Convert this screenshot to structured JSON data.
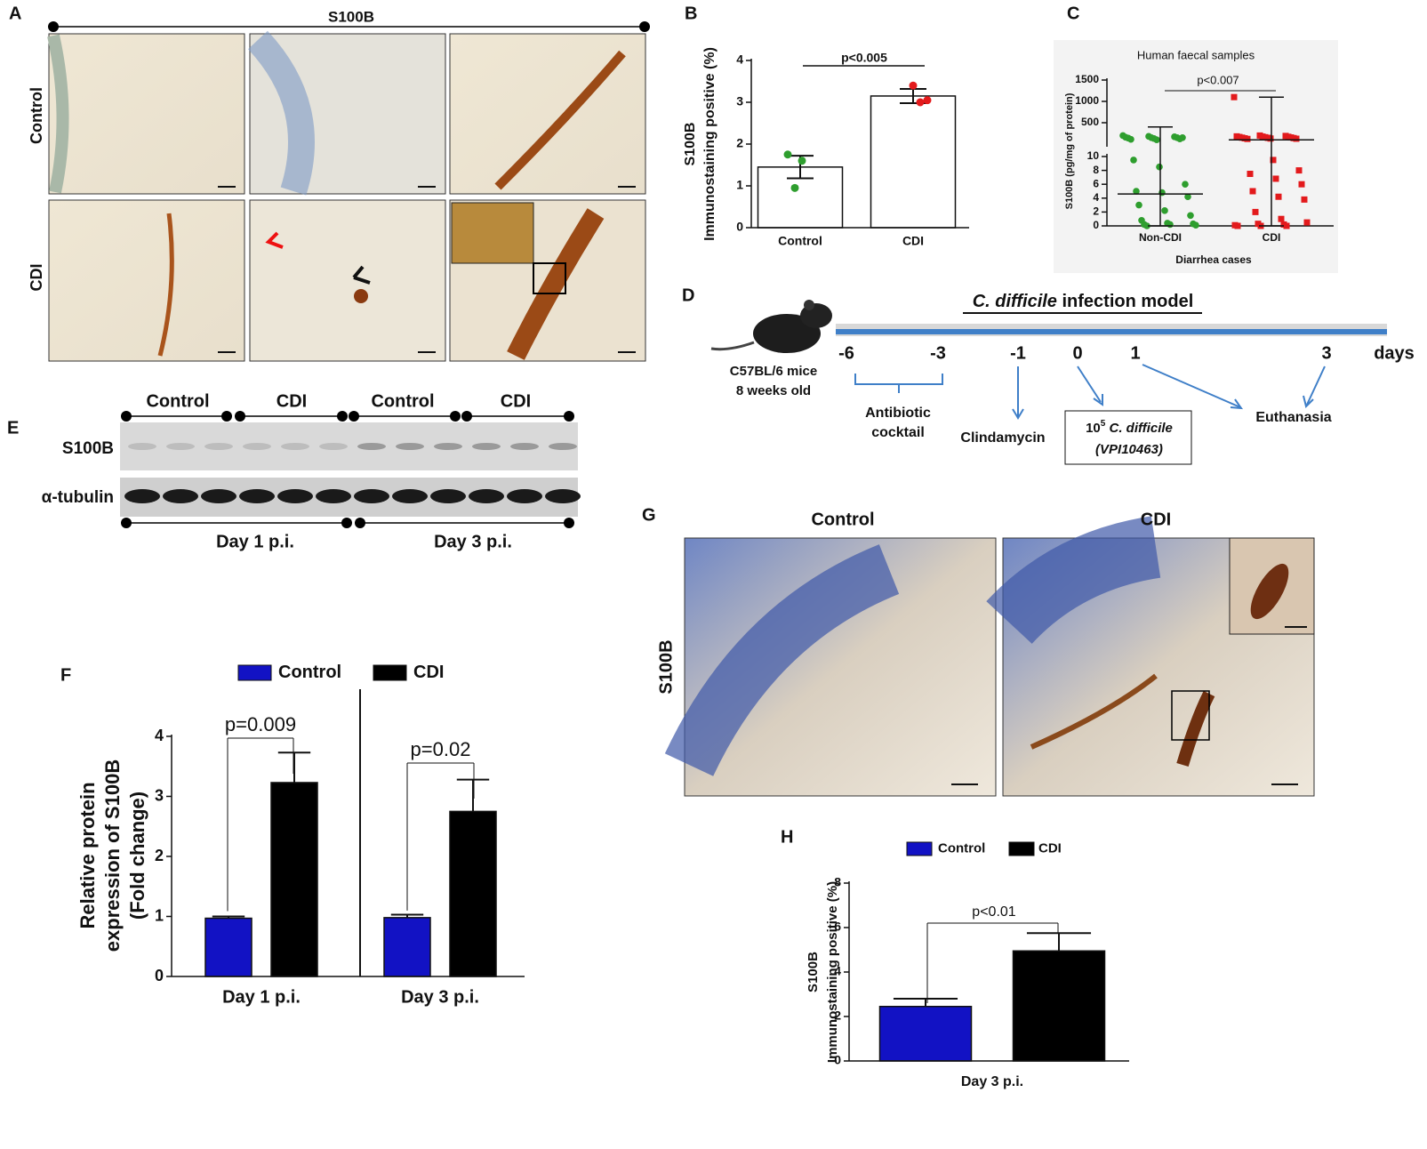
{
  "chart_data": [
    {
      "panel": "B",
      "type": "bar",
      "categories": [
        "Control",
        "CDI"
      ],
      "values": [
        1.45,
        3.15
      ],
      "errors": [
        0.27,
        0.17
      ],
      "points": [
        [
          1.75,
          1.6,
          0.95
        ],
        [
          3.4,
          3.05,
          3.0
        ]
      ],
      "point_colors": [
        "#2e9e2e",
        "#e31a1c"
      ],
      "color": "#ffffff",
      "ylabel": [
        "S100B",
        "Immunostaining positive (%)"
      ],
      "ylim": [
        0,
        4
      ],
      "yticks": [
        0,
        1,
        2,
        3,
        4
      ],
      "annotation": "p<0.005"
    },
    {
      "panel": "C",
      "type": "scatter",
      "title": "Human faecal samples",
      "categories": [
        "Non-CDI",
        "CDI"
      ],
      "points": [
        [
          200,
          180,
          170,
          160,
          150,
          150,
          140,
          130,
          120,
          110,
          100,
          150,
          9.5,
          8.5,
          6,
          5,
          4.8,
          4.2,
          3,
          2.2,
          1.5,
          0.8,
          0.4,
          0.3,
          0.2,
          0.2,
          0.1,
          0
        ],
        [
          1100,
          200,
          190,
          180,
          175,
          170,
          165,
          160,
          155,
          150,
          145,
          140,
          135,
          130,
          125,
          120,
          9.5,
          8,
          7.5,
          6.8,
          6,
          5,
          4.2,
          3.8,
          2,
          1,
          0.5,
          0.3,
          0.2,
          0.1,
          0,
          0,
          0
        ]
      ],
      "point_colors": [
        "#2e9e2e",
        "#e31a1c"
      ],
      "medians": [
        4.6,
        100
      ],
      "whisker_low": [
        0,
        0
      ],
      "whisker_high": [
        400,
        1100
      ],
      "ylabel": "S100B (pg/mg of protein)",
      "xlabel": "Diarrhea cases",
      "ylim": [
        0,
        1500
      ],
      "ybreak": 10,
      "yticks": [
        0,
        2,
        4,
        6,
        8,
        10,
        500,
        1000,
        1500
      ],
      "annotation": "p<0.007"
    },
    {
      "panel": "F",
      "type": "bar",
      "categories": [
        "Day 1 p.i.",
        "Day 3 p.i."
      ],
      "series": [
        {
          "name": "Control",
          "color": "#1212c4",
          "values": [
            0.97,
            0.98
          ],
          "errors": [
            0.03,
            0.05
          ]
        },
        {
          "name": "CDI",
          "color": "#000000",
          "values": [
            3.23,
            2.75
          ],
          "errors": [
            0.5,
            0.53
          ]
        }
      ],
      "ylabel": [
        "Relative protein",
        "expression of S100B",
        "(Fold change)"
      ],
      "ylim": [
        0,
        4
      ],
      "yticks": [
        0,
        1,
        2,
        3,
        4
      ],
      "annotations": [
        "p=0.009",
        "p=0.02"
      ]
    },
    {
      "panel": "H",
      "type": "bar",
      "categories": [
        "Day 3 p.i."
      ],
      "series": [
        {
          "name": "Control",
          "color": "#1212c4",
          "values": [
            2.45
          ],
          "errors": [
            0.35
          ]
        },
        {
          "name": "CDI",
          "color": "#000000",
          "values": [
            4.95
          ],
          "errors": [
            0.8
          ]
        }
      ],
      "ylabel": [
        "S100B",
        "Immunostaining positive (%)"
      ],
      "ylim": [
        0,
        8
      ],
      "yticks": [
        0,
        2,
        4,
        6,
        8
      ],
      "annotations": [
        "p<0.01"
      ]
    }
  ],
  "panels": {
    "A": {
      "letter": "A",
      "marker": "S100B",
      "rows": [
        "Control",
        "CDI"
      ]
    },
    "D": {
      "letter": "D",
      "title_italic": "C. difficile",
      "title_rest": " infection model",
      "mouse": [
        "C57BL/6 mice",
        "8 weeks old"
      ],
      "timeline": [
        "-6",
        "-3",
        "-1",
        "0",
        "1",
        "3"
      ],
      "unit": "days",
      "antibiotic": [
        "Antibiotic",
        "cocktail"
      ],
      "clindamycin": "Clindamycin",
      "inoculum": [
        "10",
        "5",
        " C. difficile",
        "(VPI10463)"
      ],
      "euthanasia": "Euthanasia"
    },
    "E": {
      "letter": "E",
      "groups": [
        "Control",
        "CDI",
        "Control",
        "CDI"
      ],
      "rows": [
        "S100B",
        "α-tubulin"
      ],
      "days": [
        "Day 1 p.i.",
        "Day 3 p.i."
      ]
    },
    "G": {
      "letter": "G",
      "columns": [
        "Control",
        "CDI"
      ],
      "row": "S100B"
    }
  }
}
